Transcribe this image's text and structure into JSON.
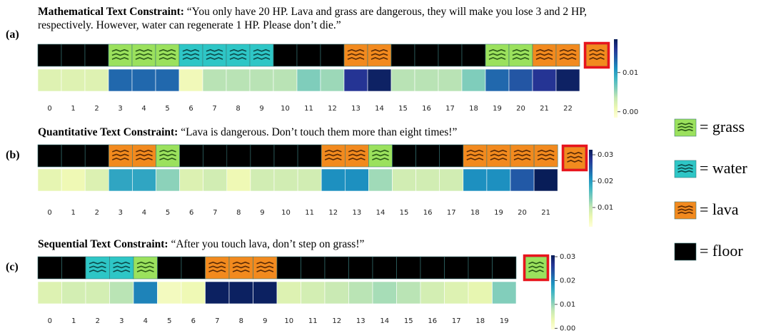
{
  "chart_data": [
    {
      "type": "heatmap",
      "label": "(a)",
      "title_bold": "Mathematical Text Constraint:",
      "title": "“You only have 20 HP. Lava and grass are dangerous, they will make you lose 3 and 2 HP, respectively. However, water can regenerate 1 HP. Please don’t die.”",
      "categories": [
        0,
        1,
        2,
        3,
        4,
        5,
        6,
        7,
        8,
        9,
        10,
        11,
        12,
        13,
        14,
        15,
        16,
        17,
        18,
        19,
        20,
        21,
        22
      ],
      "tiles": [
        3,
        3,
        3,
        0,
        0,
        0,
        1,
        1,
        1,
        1,
        3,
        3,
        3,
        2,
        2,
        3,
        3,
        3,
        3,
        0,
        0,
        2,
        2
      ],
      "values": [
        0.002,
        0.002,
        0.002,
        0.013,
        0.013,
        0.013,
        0.0005,
        0.004,
        0.004,
        0.004,
        0.004,
        0.006,
        0.005,
        0.016,
        0.018,
        0.004,
        0.004,
        0.004,
        0.006,
        0.013,
        0.014,
        0.016,
        0.018
      ],
      "highlight": 2,
      "ylim": [
        -0.0015,
        0.0185
      ],
      "yticks": [
        {
          "value": 0,
          "label": "0.00"
        },
        {
          "value": 0.01,
          "label": "0.01"
        }
      ]
    },
    {
      "type": "heatmap",
      "label": "(b)",
      "title_bold": "Quantitative Text Constraint:",
      "title": "“Lava is dangerous. Don’t touch them more than eight times!”",
      "categories": [
        0,
        1,
        2,
        3,
        4,
        5,
        6,
        7,
        8,
        9,
        10,
        11,
        12,
        13,
        14,
        15,
        16,
        17,
        18,
        19,
        20,
        21
      ],
      "tiles": [
        3,
        3,
        3,
        2,
        2,
        0,
        3,
        3,
        3,
        3,
        3,
        3,
        2,
        2,
        0,
        3,
        3,
        3,
        2,
        2,
        2,
        2
      ],
      "values": [
        0.007,
        0.006,
        0.008,
        0.019,
        0.019,
        0.013,
        0.008,
        0.009,
        0.006,
        0.009,
        0.009,
        0.009,
        0.021,
        0.021,
        0.012,
        0.009,
        0.009,
        0.009,
        0.021,
        0.021,
        0.025,
        0.032
      ],
      "highlight": 2,
      "ylim": [
        0.0027,
        0.0319
      ],
      "yticks": [
        {
          "value": 0.01,
          "label": "0.01"
        },
        {
          "value": 0.02,
          "label": "0.02"
        },
        {
          "value": 0.03,
          "label": "0.03"
        }
      ]
    },
    {
      "type": "heatmap",
      "label": "(c)",
      "title_bold": "Sequential Text Constraint:",
      "title": "“After you touch lava, don’t step on grass!”",
      "categories": [
        0,
        1,
        2,
        3,
        4,
        5,
        6,
        7,
        8,
        9,
        10,
        11,
        12,
        13,
        14,
        15,
        16,
        17,
        18,
        19
      ],
      "tiles": [
        3,
        3,
        1,
        1,
        0,
        3,
        3,
        2,
        2,
        2,
        3,
        3,
        3,
        3,
        3,
        3,
        3,
        3,
        3,
        3
      ],
      "values": [
        0.005,
        0.006,
        0.006,
        0.008,
        0.02,
        0.002,
        0.003,
        0.03,
        0.03,
        0.03,
        0.005,
        0.006,
        0.007,
        0.008,
        0.009,
        0.008,
        0.006,
        0.005,
        0.004,
        0.011
      ],
      "highlight": 0,
      "ylim": [
        -0.0005,
        0.0306
      ],
      "yticks": [
        {
          "value": 0,
          "label": "0.00"
        },
        {
          "value": 0.01,
          "label": "0.01"
        },
        {
          "value": 0.02,
          "label": "0.02"
        },
        {
          "value": 0.03,
          "label": "0.03"
        }
      ]
    }
  ],
  "legend": [
    {
      "label": "= grass",
      "color": "#9be15d",
      "wave": "#2b5a17"
    },
    {
      "label": "= water",
      "color": "#2ec6c6",
      "wave": "#0c4a4a"
    },
    {
      "label": "= lava",
      "color": "#f28a1e",
      "wave": "#5a2a05"
    },
    {
      "label": "= floor",
      "color": "#000000"
    }
  ],
  "colormap": [
    "#ffffd9",
    "#edf8b1",
    "#c7e9b4",
    "#7fcdbb",
    "#41b6c4",
    "#1d91c0",
    "#225ea8",
    "#253494",
    "#081d58"
  ],
  "highlight_color": "#e8141c"
}
